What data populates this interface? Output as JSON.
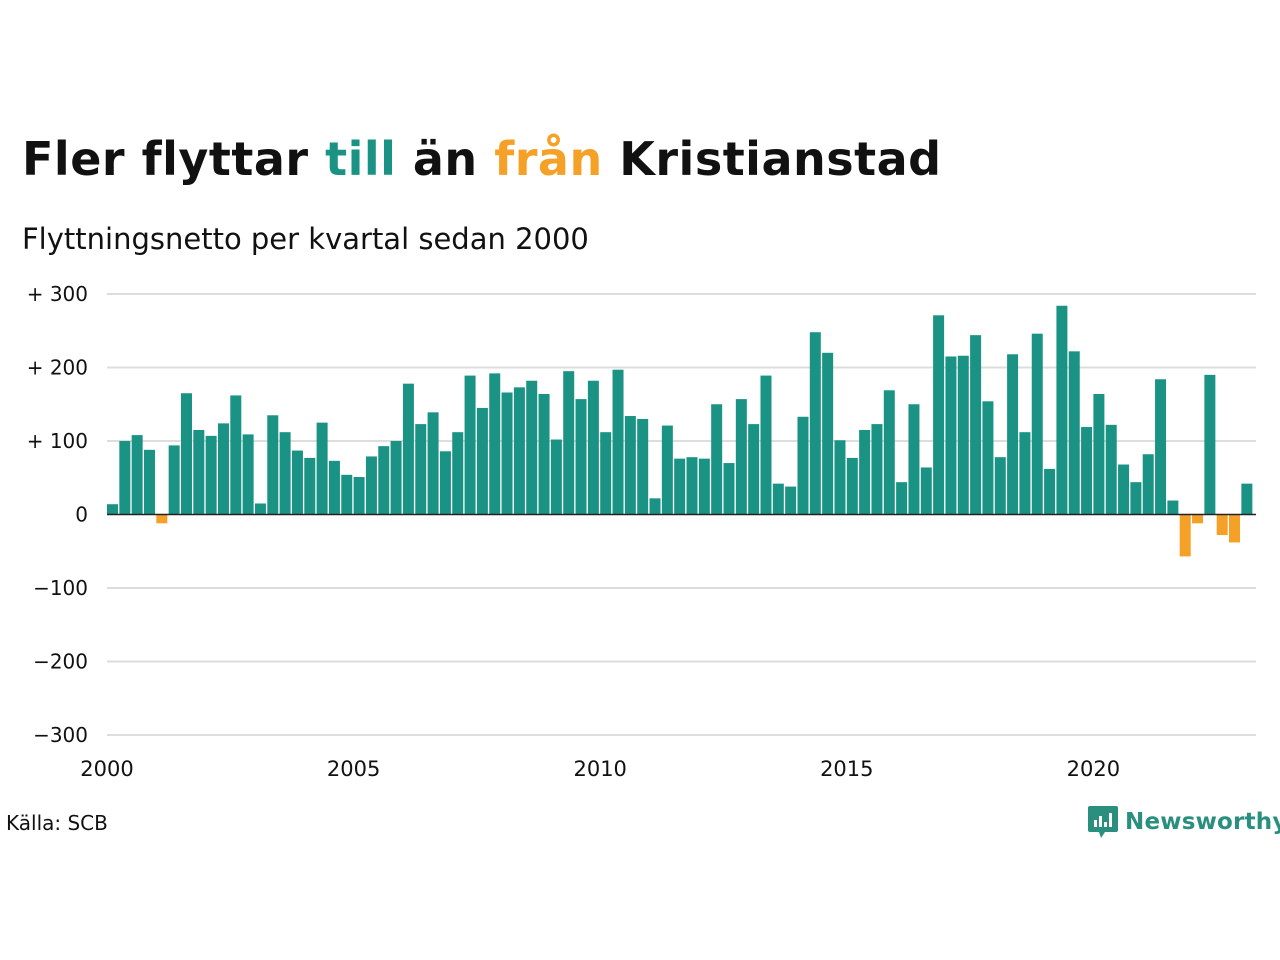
{
  "title": {
    "part1": "Fler flyttar ",
    "part2": "till",
    "part3": " än ",
    "part4": "från",
    "part5": " Kristianstad"
  },
  "subtitle": "Flyttningsnetto per kvartal sedan 2000",
  "source": "Källa: SCB",
  "brand": "Newsworthy",
  "colors": {
    "positive": "#1a9385",
    "negative": "#f5a026",
    "brand": "#2b8f80",
    "grid": "#dddddd",
    "text": "#111111"
  },
  "chart_data": {
    "type": "bar",
    "x_start_year": 2000,
    "quarters_per_year": 4,
    "ylim": [
      -300,
      300
    ],
    "yticks": [
      {
        "value": 300,
        "label": "+ 300"
      },
      {
        "value": 200,
        "label": "+ 200"
      },
      {
        "value": 100,
        "label": "+ 100"
      },
      {
        "value": 0,
        "label": "0"
      },
      {
        "value": -100,
        "label": "−100"
      },
      {
        "value": -200,
        "label": "−200"
      },
      {
        "value": -300,
        "label": "−300"
      }
    ],
    "xticks": [
      2000,
      2005,
      2010,
      2015,
      2020
    ],
    "grid": true,
    "values": [
      14,
      100,
      108,
      88,
      -12,
      94,
      165,
      115,
      107,
      124,
      162,
      109,
      15,
      135,
      112,
      87,
      77,
      125,
      73,
      54,
      51,
      79,
      93,
      100,
      178,
      123,
      139,
      86,
      112,
      189,
      145,
      192,
      166,
      173,
      182,
      164,
      102,
      195,
      157,
      182,
      112,
      197,
      134,
      130,
      22,
      121,
      76,
      78,
      76,
      150,
      70,
      157,
      123,
      189,
      42,
      38,
      133,
      248,
      220,
      101,
      77,
      115,
      123,
      169,
      44,
      150,
      64,
      271,
      215,
      216,
      244,
      154,
      78,
      218,
      112,
      246,
      62,
      284,
      222,
      119,
      164,
      122,
      68,
      44,
      82,
      184,
      19,
      -57,
      -12,
      190,
      -28,
      -38,
      42
    ]
  }
}
